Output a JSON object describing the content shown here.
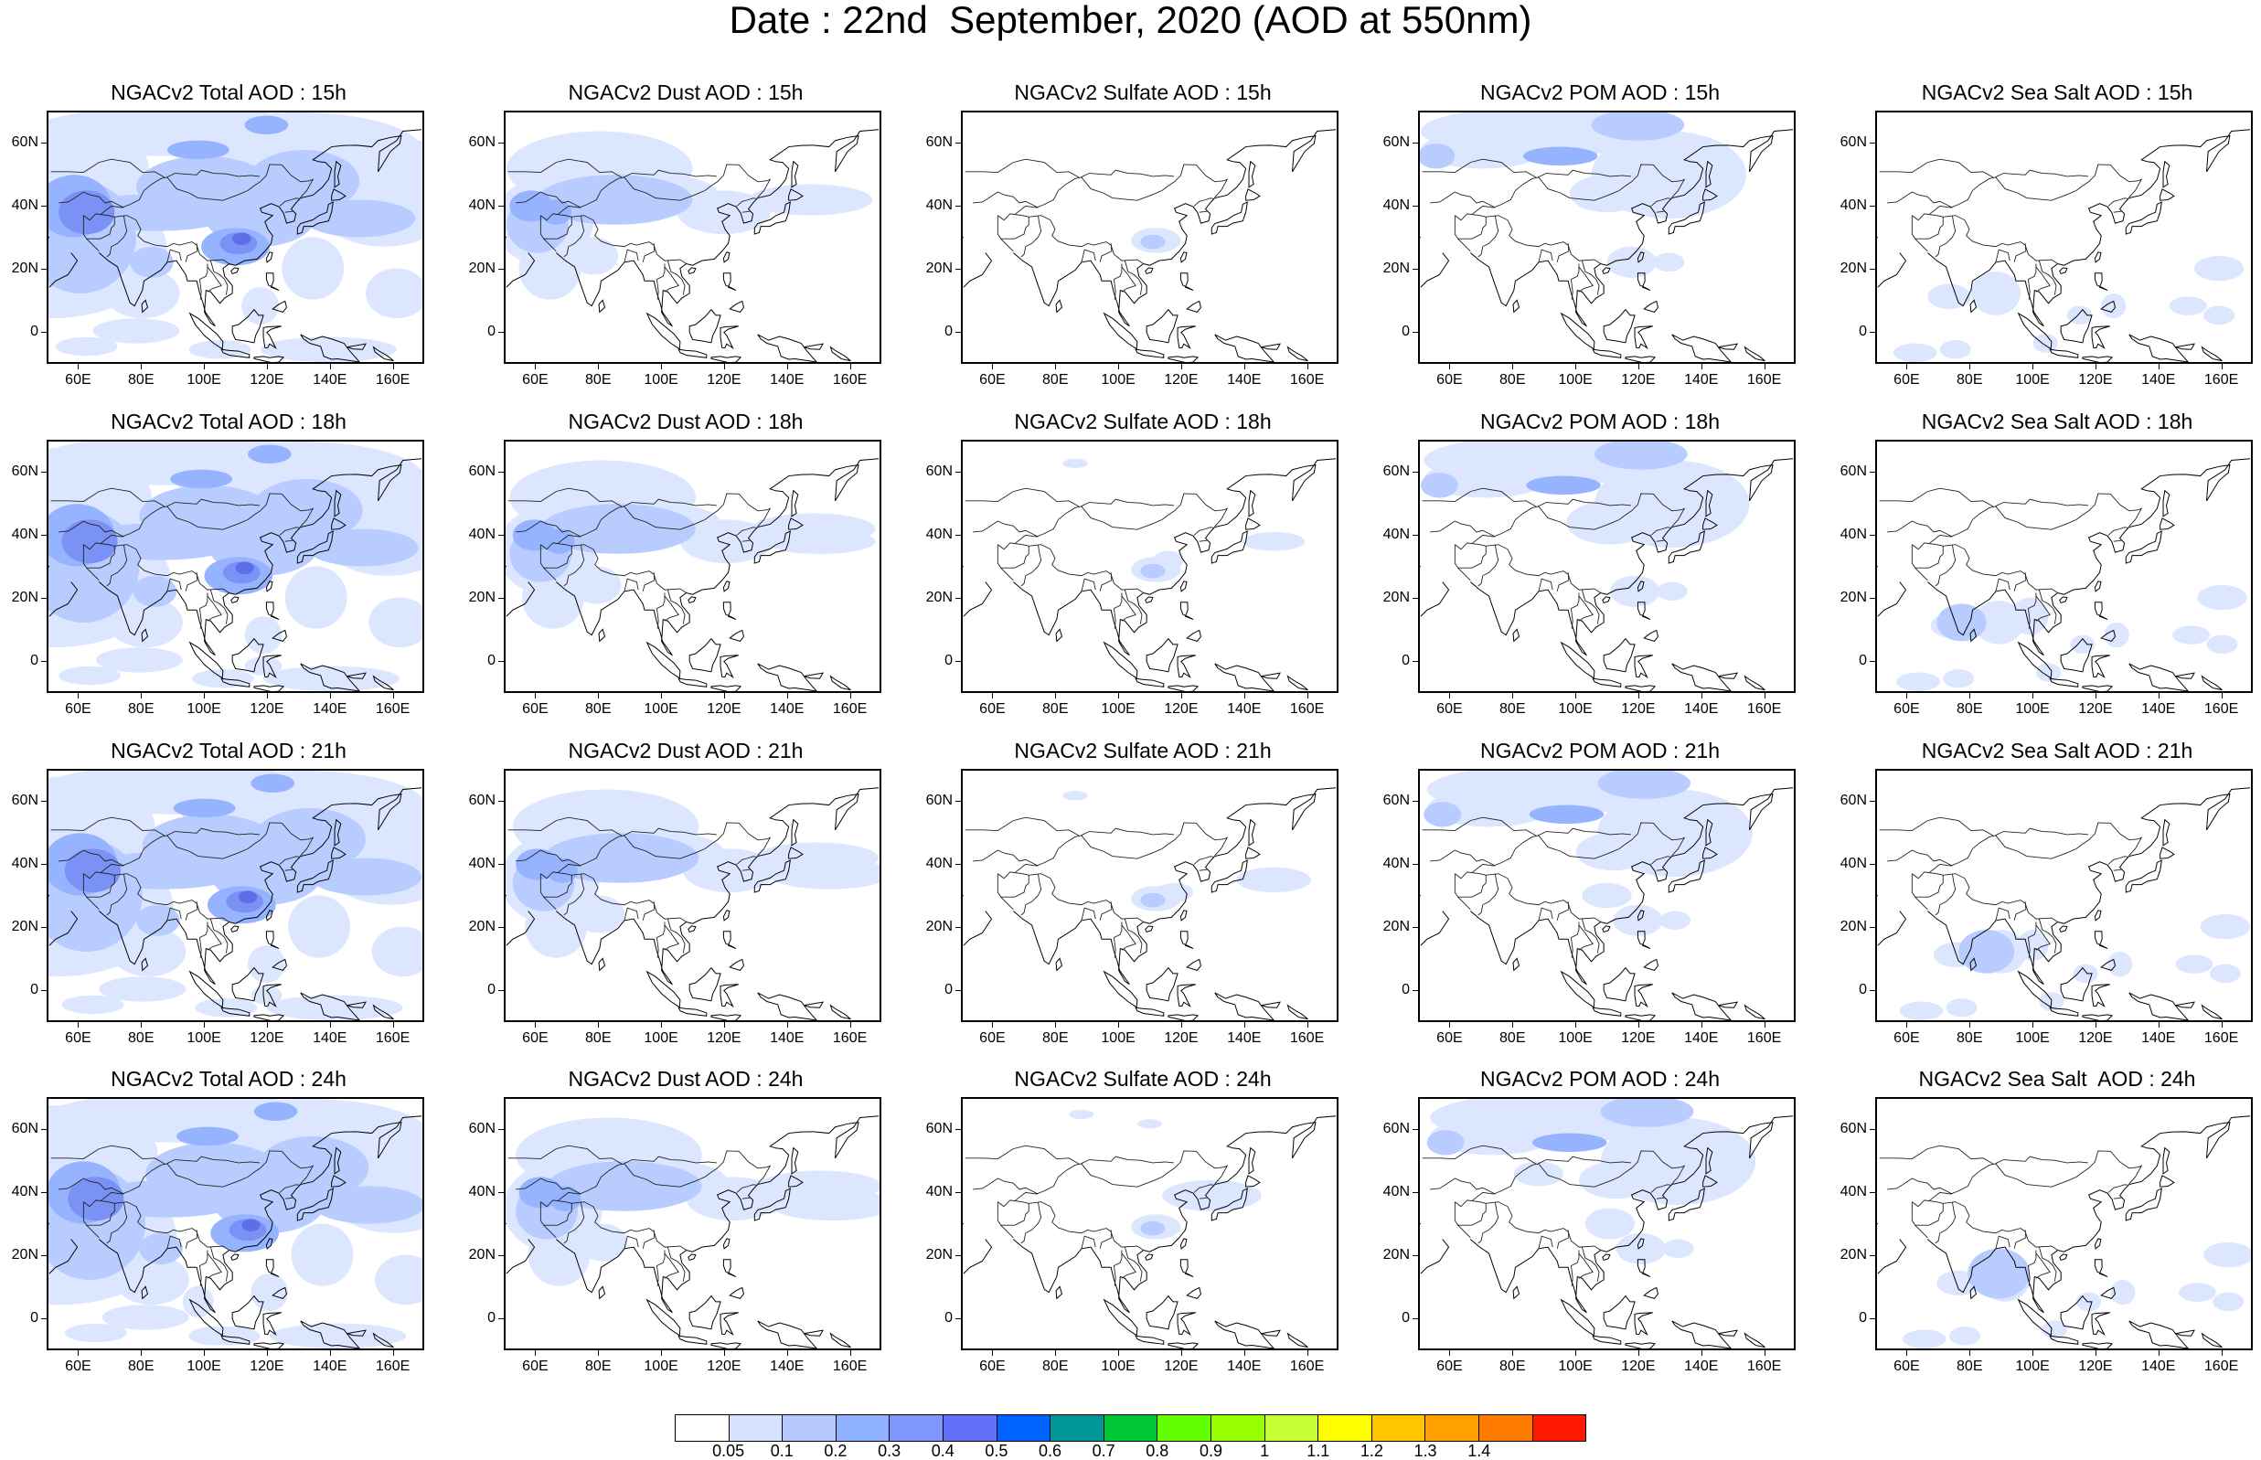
{
  "title": "Date : 22nd  September, 2020 (AOD at 550nm)",
  "panel_titles": [
    [
      "NGACv2 Total AOD : 15h",
      "NGACv2 Dust AOD : 15h",
      "NGACv2 Sulfate AOD : 15h",
      "NGACv2 POM AOD : 15h",
      "NGACv2 Sea Salt AOD : 15h"
    ],
    [
      "NGACv2 Total AOD : 18h",
      "NGACv2 Dust AOD : 18h",
      "NGACv2 Sulfate AOD : 18h",
      "NGACv2 POM AOD : 18h",
      "NGACv2 Sea Salt AOD : 18h"
    ],
    [
      "NGACv2 Total AOD : 21h",
      "NGACv2 Dust AOD : 21h",
      "NGACv2 Sulfate AOD : 21h",
      "NGACv2 POM AOD : 21h",
      "NGACv2 Sea Salt AOD : 21h"
    ],
    [
      "NGACv2 Total AOD : 24h",
      "NGACv2 Dust AOD : 24h",
      "NGACv2 Sulfate AOD : 24h",
      "NGACv2 POM AOD : 24h",
      "NGACv2 Sea Salt  AOD : 24h"
    ]
  ],
  "map_extent": {
    "lon": [
      50,
      170
    ],
    "lat": [
      -10,
      70
    ]
  },
  "y_ticks": [
    "60N",
    "40N",
    "20N",
    "0"
  ],
  "x_ticks": [
    "60E",
    "80E",
    "100E",
    "120E",
    "140E",
    "160E"
  ],
  "colorbar": {
    "labels": [
      "0.05",
      "0.1",
      "0.2",
      "0.3",
      "0.4",
      "0.5",
      "0.6",
      "0.7",
      "0.8",
      "0.9",
      "1",
      "1.1",
      "1.2",
      "1.3",
      "1.4"
    ],
    "colors": [
      "#ffffff",
      "#d6e2ff",
      "#b5c9ff",
      "#8eb2ff",
      "#7f96ff",
      "#6370f8",
      "#0063ff",
      "#009696",
      "#00c633",
      "#63ff00",
      "#96ff00",
      "#c6ff33",
      "#ffff00",
      "#ffc600",
      "#ffa000",
      "#ff7c00",
      "#ff1900"
    ]
  }
}
